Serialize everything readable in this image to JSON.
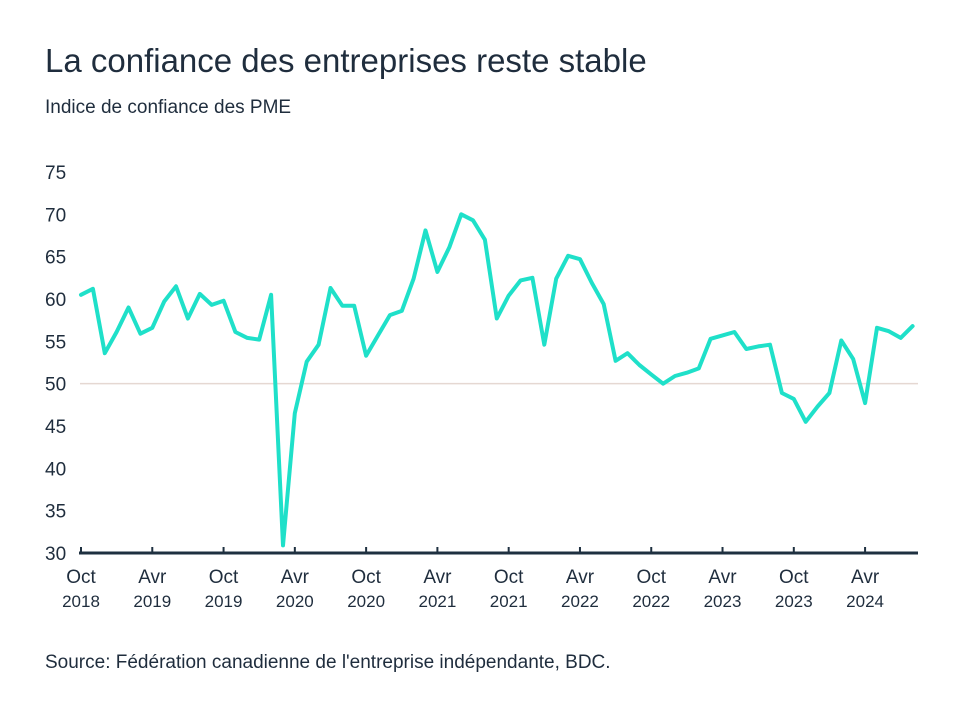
{
  "chart_data": {
    "type": "line",
    "title": "La confiance des entreprises reste stable",
    "subtitle": "Indice de confiance des PME",
    "source": "Source: Fédération canadienne de l'entreprise indépendante, BDC.",
    "ylim": [
      30,
      75
    ],
    "yticks": [
      30,
      35,
      40,
      45,
      50,
      55,
      60,
      65,
      70,
      75
    ],
    "reference_line": 50,
    "grid": false,
    "x_start": "2018-10",
    "x_frequency": "monthly",
    "xticks": [
      {
        "month": "Oct",
        "year": "2018"
      },
      {
        "month": "Avr",
        "year": "2019"
      },
      {
        "month": "Oct",
        "year": "2019"
      },
      {
        "month": "Avr",
        "year": "2020"
      },
      {
        "month": "Oct",
        "year": "2020"
      },
      {
        "month": "Avr",
        "year": "2021"
      },
      {
        "month": "Oct",
        "year": "2021"
      },
      {
        "month": "Avr",
        "year": "2022"
      },
      {
        "month": "Oct",
        "year": "2022"
      },
      {
        "month": "Avr",
        "year": "2023"
      },
      {
        "month": "Oct",
        "year": "2023"
      },
      {
        "month": "Avr",
        "year": "2024"
      }
    ],
    "values": [
      60.5,
      61.2,
      53.6,
      56.1,
      59.0,
      55.9,
      56.6,
      59.7,
      61.5,
      57.7,
      60.6,
      59.3,
      59.8,
      56.1,
      55.4,
      55.2,
      60.5,
      30.9,
      46.5,
      52.6,
      54.6,
      61.3,
      59.2,
      59.2,
      53.3,
      55.7,
      58.1,
      58.6,
      62.4,
      68.1,
      63.2,
      66.1,
      70.0,
      69.3,
      67.0,
      57.7,
      60.4,
      62.2,
      62.5,
      54.6,
      62.4,
      65.1,
      64.7,
      61.9,
      59.4,
      52.7,
      53.6,
      52.2,
      51.1,
      50.0,
      50.9,
      51.3,
      51.8,
      55.3,
      55.7,
      56.1,
      54.1,
      54.4,
      54.6,
      48.9,
      48.2,
      45.5,
      47.3,
      48.9,
      55.1,
      52.9,
      47.7,
      56.6,
      56.2,
      55.4,
      56.8
    ],
    "colors": {
      "line": "#1fe0c9",
      "text": "#1f2d3d",
      "axis": "#1e3040",
      "reference": "#e5d8d2"
    }
  }
}
